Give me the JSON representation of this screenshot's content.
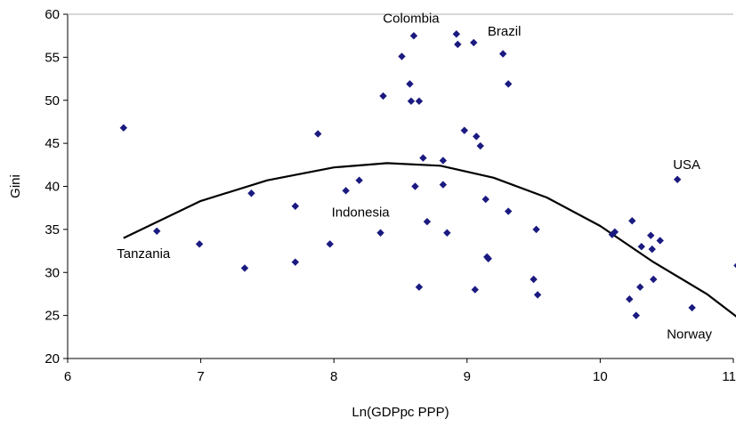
{
  "chart_data": {
    "type": "scatter",
    "title": "",
    "xlabel": "Ln(GDPpc PPP)",
    "ylabel": "Gini",
    "xlim": [
      6,
      11
    ],
    "ylim": [
      20,
      60
    ],
    "xticks": [
      6,
      7,
      8,
      9,
      10,
      11
    ],
    "yticks": [
      20,
      25,
      30,
      35,
      40,
      45,
      50,
      55,
      60
    ],
    "grid": false,
    "legend": "none",
    "marker_color": "#1a1a80",
    "line_color": "#000000",
    "points": [
      {
        "x": 6.42,
        "y": 46.8
      },
      {
        "x": 6.67,
        "y": 34.8
      },
      {
        "x": 6.99,
        "y": 33.3
      },
      {
        "x": 7.33,
        "y": 30.5
      },
      {
        "x": 7.38,
        "y": 39.2
      },
      {
        "x": 7.71,
        "y": 31.2
      },
      {
        "x": 7.71,
        "y": 37.7
      },
      {
        "x": 7.88,
        "y": 46.1
      },
      {
        "x": 7.97,
        "y": 33.3
      },
      {
        "x": 8.09,
        "y": 39.5
      },
      {
        "x": 8.19,
        "y": 40.7
      },
      {
        "x": 8.35,
        "y": 34.6
      },
      {
        "x": 8.37,
        "y": 50.5
      },
      {
        "x": 8.51,
        "y": 55.1
      },
      {
        "x": 8.57,
        "y": 51.9
      },
      {
        "x": 8.58,
        "y": 49.9
      },
      {
        "x": 8.6,
        "y": 57.5
      },
      {
        "x": 8.61,
        "y": 40.0
      },
      {
        "x": 8.64,
        "y": 28.3
      },
      {
        "x": 8.64,
        "y": 49.9
      },
      {
        "x": 8.67,
        "y": 43.3
      },
      {
        "x": 8.7,
        "y": 35.9
      },
      {
        "x": 8.82,
        "y": 40.2
      },
      {
        "x": 8.82,
        "y": 43.0
      },
      {
        "x": 8.85,
        "y": 34.6
      },
      {
        "x": 8.92,
        "y": 57.7
      },
      {
        "x": 8.93,
        "y": 56.5
      },
      {
        "x": 8.98,
        "y": 46.5
      },
      {
        "x": 9.05,
        "y": 56.7
      },
      {
        "x": 9.06,
        "y": 28.0
      },
      {
        "x": 9.07,
        "y": 45.8
      },
      {
        "x": 9.1,
        "y": 44.7
      },
      {
        "x": 9.14,
        "y": 38.5
      },
      {
        "x": 9.15,
        "y": 31.8
      },
      {
        "x": 9.16,
        "y": 31.6
      },
      {
        "x": 9.27,
        "y": 55.4
      },
      {
        "x": 9.31,
        "y": 37.1
      },
      {
        "x": 9.31,
        "y": 51.9
      },
      {
        "x": 9.5,
        "y": 29.2
      },
      {
        "x": 9.52,
        "y": 35.0
      },
      {
        "x": 9.53,
        "y": 27.4
      },
      {
        "x": 10.09,
        "y": 34.4
      },
      {
        "x": 10.11,
        "y": 34.7
      },
      {
        "x": 10.22,
        "y": 26.9
      },
      {
        "x": 10.24,
        "y": 36.0
      },
      {
        "x": 10.27,
        "y": 25.0
      },
      {
        "x": 10.3,
        "y": 28.3
      },
      {
        "x": 10.31,
        "y": 33.0
      },
      {
        "x": 10.38,
        "y": 34.3
      },
      {
        "x": 10.39,
        "y": 32.7
      },
      {
        "x": 10.4,
        "y": 29.2
      },
      {
        "x": 10.45,
        "y": 33.7
      },
      {
        "x": 10.58,
        "y": 40.8
      },
      {
        "x": 10.69,
        "y": 25.9
      },
      {
        "x": 11.03,
        "y": 30.8
      }
    ],
    "trendline": {
      "type": "quadratic",
      "x_range": [
        6.42,
        11.03
      ],
      "points": [
        {
          "x": 6.42,
          "y": 34.0
        },
        {
          "x": 7.0,
          "y": 38.3
        },
        {
          "x": 7.5,
          "y": 40.7
        },
        {
          "x": 8.0,
          "y": 42.2
        },
        {
          "x": 8.4,
          "y": 42.7
        },
        {
          "x": 8.8,
          "y": 42.4
        },
        {
          "x": 9.2,
          "y": 41.0
        },
        {
          "x": 9.6,
          "y": 38.7
        },
        {
          "x": 10.0,
          "y": 35.4
        },
        {
          "x": 10.4,
          "y": 31.2
        },
        {
          "x": 10.8,
          "y": 27.5
        },
        {
          "x": 11.03,
          "y": 24.8
        }
      ]
    },
    "annotations": [
      {
        "text": "Colombia",
        "x": 8.58,
        "y": 59.0
      },
      {
        "text": "Brazil",
        "x": 9.28,
        "y": 57.5
      },
      {
        "text": "USA",
        "x": 10.65,
        "y": 42.0
      },
      {
        "text": "Indonesia",
        "x": 8.2,
        "y": 36.5
      },
      {
        "text": "Tanzania",
        "x": 6.57,
        "y": 31.7
      },
      {
        "text": "Norway",
        "x": 10.67,
        "y": 22.3
      }
    ]
  }
}
